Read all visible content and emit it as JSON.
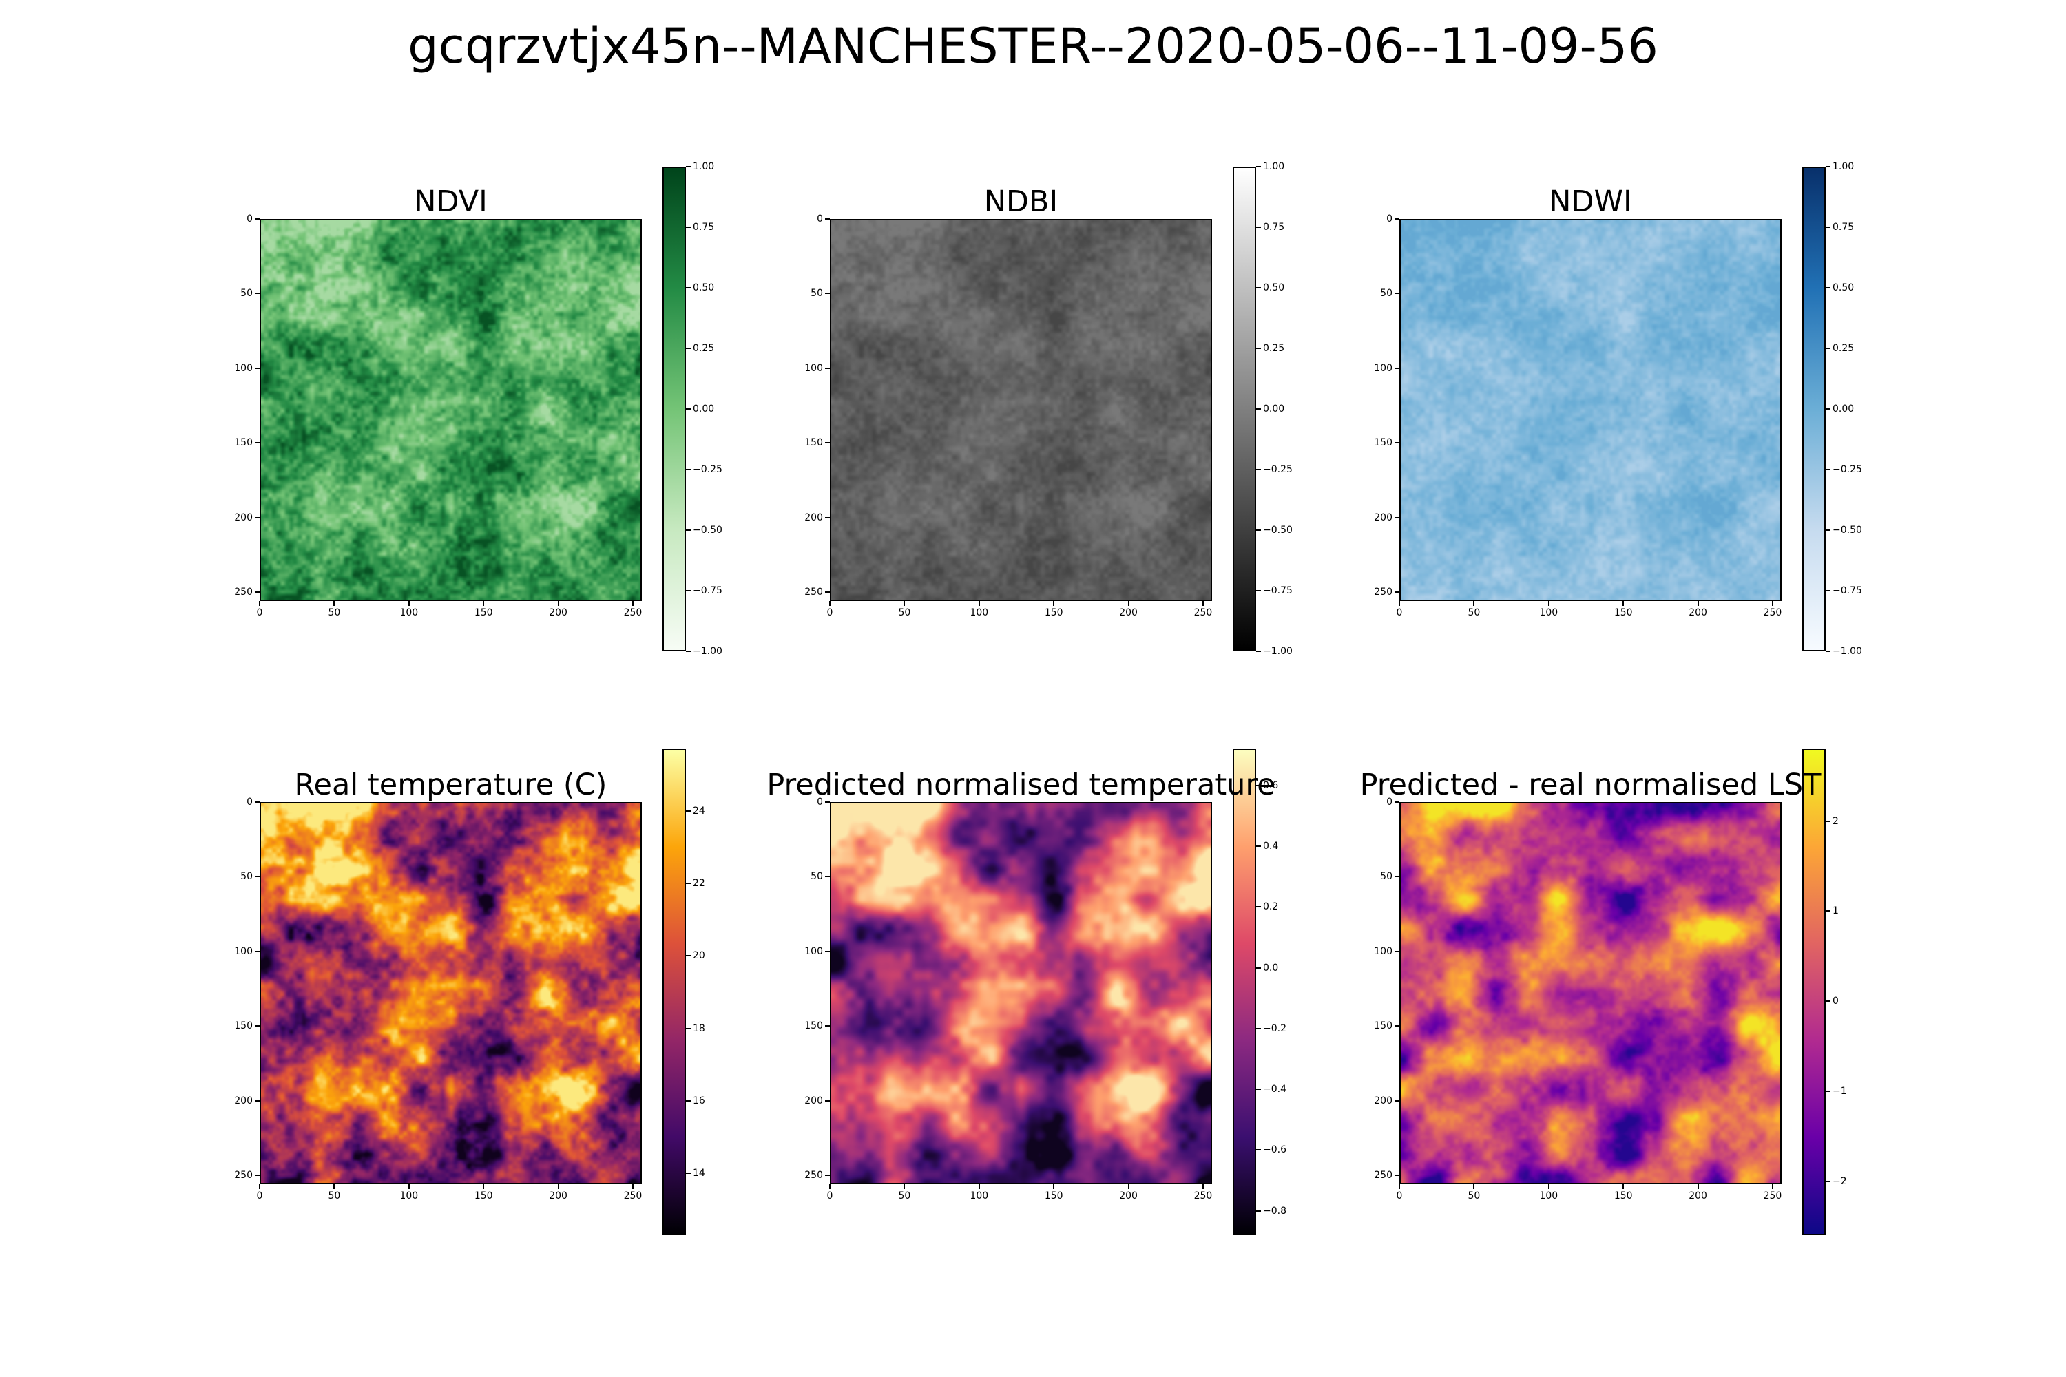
{
  "figure": {
    "title": "gcqrzvtjx45n--MANCHESTER--2020-05-06--11-09-56"
  },
  "chart_data": [
    {
      "type": "heatmap",
      "title": "NDVI",
      "colormap": "Greens",
      "x_ticks": [
        0,
        50,
        100,
        150,
        200,
        250
      ],
      "y_ticks": [
        0,
        50,
        100,
        150,
        200,
        250
      ],
      "xlim": [
        0,
        256
      ],
      "ylim": [
        256,
        0
      ],
      "colorbar": {
        "vmin": -1.0,
        "vmax": 1.0,
        "ticks": [
          "1.00",
          "0.75",
          "0.50",
          "0.25",
          "0.00",
          "−0.25",
          "−0.50",
          "−0.75",
          "−1.00"
        ],
        "colors": [
          "#f7fcf5",
          "#c7e9c0",
          "#74c476",
          "#238b45",
          "#00441b"
        ]
      },
      "value_range_shown": [
        -0.3,
        0.9
      ],
      "grid": false
    },
    {
      "type": "heatmap",
      "title": "NDBI",
      "colormap": "Greys_r",
      "x_ticks": [
        0,
        50,
        100,
        150,
        200,
        250
      ],
      "y_ticks": [
        0,
        50,
        100,
        150,
        200,
        250
      ],
      "xlim": [
        0,
        256
      ],
      "ylim": [
        256,
        0
      ],
      "colorbar": {
        "vmin": -1.0,
        "vmax": 1.0,
        "ticks": [
          "1.00",
          "0.75",
          "0.50",
          "0.25",
          "0.00",
          "−0.25",
          "−0.50",
          "−0.75",
          "−1.00"
        ],
        "colors": [
          "#000000",
          "#555555",
          "#aaaaaa",
          "#ffffff"
        ]
      },
      "value_range_shown": [
        -0.45,
        -0.05
      ],
      "grid": false
    },
    {
      "type": "heatmap",
      "title": "NDWI",
      "colormap": "Blues",
      "x_ticks": [
        0,
        50,
        100,
        150,
        200,
        250
      ],
      "y_ticks": [
        0,
        50,
        100,
        150,
        200,
        250
      ],
      "xlim": [
        0,
        256
      ],
      "ylim": [
        256,
        0
      ],
      "colorbar": {
        "vmin": -1.0,
        "vmax": 1.0,
        "ticks": [
          "1.00",
          "0.75",
          "0.50",
          "0.25",
          "0.00",
          "−0.25",
          "−0.50",
          "−0.75",
          "−1.00"
        ],
        "colors": [
          "#f7fbff",
          "#c6dbef",
          "#6baed6",
          "#2171b5",
          "#08306b"
        ]
      },
      "value_range_shown": [
        -0.35,
        0.05
      ],
      "grid": false
    },
    {
      "type": "heatmap",
      "title": "Real temperature (C)",
      "colormap": "inferno",
      "x_ticks": [
        0,
        50,
        100,
        150,
        200,
        250
      ],
      "y_ticks": [
        0,
        50,
        100,
        150,
        200,
        250
      ],
      "xlim": [
        0,
        256
      ],
      "ylim": [
        256,
        0
      ],
      "colorbar": {
        "vmin": 12.3,
        "vmax": 25.7,
        "ticks": [
          "24",
          "22",
          "20",
          "18",
          "16",
          "14"
        ],
        "tick_values": [
          24,
          22,
          20,
          18,
          16,
          14
        ],
        "colors": [
          "#000004",
          "#420a68",
          "#932667",
          "#dd513a",
          "#fca50a",
          "#fcffa4"
        ]
      },
      "grid": false
    },
    {
      "type": "heatmap",
      "title": "Predicted normalised temperature",
      "colormap": "magma",
      "x_ticks": [
        0,
        50,
        100,
        150,
        200,
        250
      ],
      "y_ticks": [
        0,
        50,
        100,
        150,
        200,
        250
      ],
      "xlim": [
        0,
        256
      ],
      "ylim": [
        256,
        0
      ],
      "colorbar": {
        "vmin": -0.88,
        "vmax": 0.72,
        "ticks": [
          "0.6",
          "0.4",
          "0.2",
          "0.0",
          "−0.2",
          "−0.4",
          "−0.6",
          "−0.8"
        ],
        "tick_values": [
          0.6,
          0.4,
          0.2,
          0.0,
          -0.2,
          -0.4,
          -0.6,
          -0.8
        ],
        "colors": [
          "#000004",
          "#3b0f70",
          "#8c2981",
          "#de4968",
          "#fe9f6d",
          "#fcfdbf"
        ]
      },
      "grid": false
    },
    {
      "type": "heatmap",
      "title": "Predicted - real normalised LST",
      "colormap": "plasma",
      "x_ticks": [
        0,
        50,
        100,
        150,
        200,
        250
      ],
      "y_ticks": [
        0,
        50,
        100,
        150,
        200,
        250
      ],
      "xlim": [
        0,
        256
      ],
      "ylim": [
        256,
        0
      ],
      "colorbar": {
        "vmin": -2.6,
        "vmax": 2.8,
        "ticks": [
          "2",
          "1",
          "0",
          "−1",
          "−2"
        ],
        "tick_values": [
          2,
          1,
          0,
          -1,
          -2
        ],
        "colors": [
          "#0d0887",
          "#6a00a8",
          "#b12a90",
          "#e16462",
          "#fca636",
          "#f0f921"
        ]
      },
      "grid": false
    }
  ]
}
